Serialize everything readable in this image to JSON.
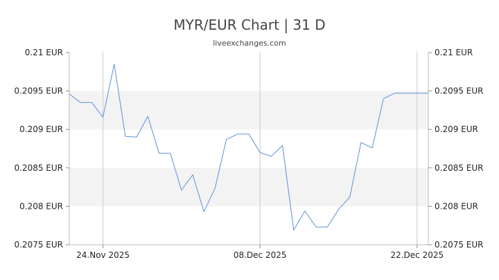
{
  "chart_data": {
    "type": "line",
    "title": "MYR/EUR Chart | 31 D",
    "subtitle": "liveexchanges.com",
    "xlabel": "",
    "ylabel": "",
    "ylim": [
      0.2075,
      0.21
    ],
    "y_ticks": [
      "0.21 EUR",
      "0.2095 EUR",
      "0.209 EUR",
      "0.2085 EUR",
      "0.208 EUR",
      "0.2075 EUR"
    ],
    "y_tick_values": [
      0.21,
      0.2095,
      0.209,
      0.2085,
      0.208,
      0.2075
    ],
    "x_ticks": [
      {
        "label": "24.Nov 2025",
        "day": 3
      },
      {
        "label": "08.Dec 2025",
        "day": 17
      },
      {
        "label": "22.Dec 2025",
        "day": 31
      }
    ],
    "x_range": [
      0,
      32
    ],
    "grid": "alternating horizontal bands",
    "line_color": "#5b8fd9",
    "series": [
      {
        "days": [
          0,
          1,
          2,
          3,
          4,
          5,
          6,
          7,
          8,
          9,
          10,
          11,
          12,
          13,
          14,
          15,
          16,
          17,
          18,
          19,
          20,
          21,
          22,
          23,
          24,
          25,
          26,
          27,
          28,
          29,
          30,
          31,
          32
        ],
        "values": [
          0.20946,
          0.20935,
          0.20935,
          0.20916,
          0.20985,
          0.20891,
          0.2089,
          0.20917,
          0.20869,
          0.20869,
          0.20821,
          0.20841,
          0.20793,
          0.20824,
          0.20887,
          0.20894,
          0.20894,
          0.2087,
          0.20865,
          0.20879,
          0.20769,
          0.20794,
          0.20773,
          0.20773,
          0.20796,
          0.20812,
          0.20883,
          0.20876,
          0.2094,
          0.20947,
          0.20947,
          0.20947,
          0.20947
        ]
      }
    ]
  }
}
